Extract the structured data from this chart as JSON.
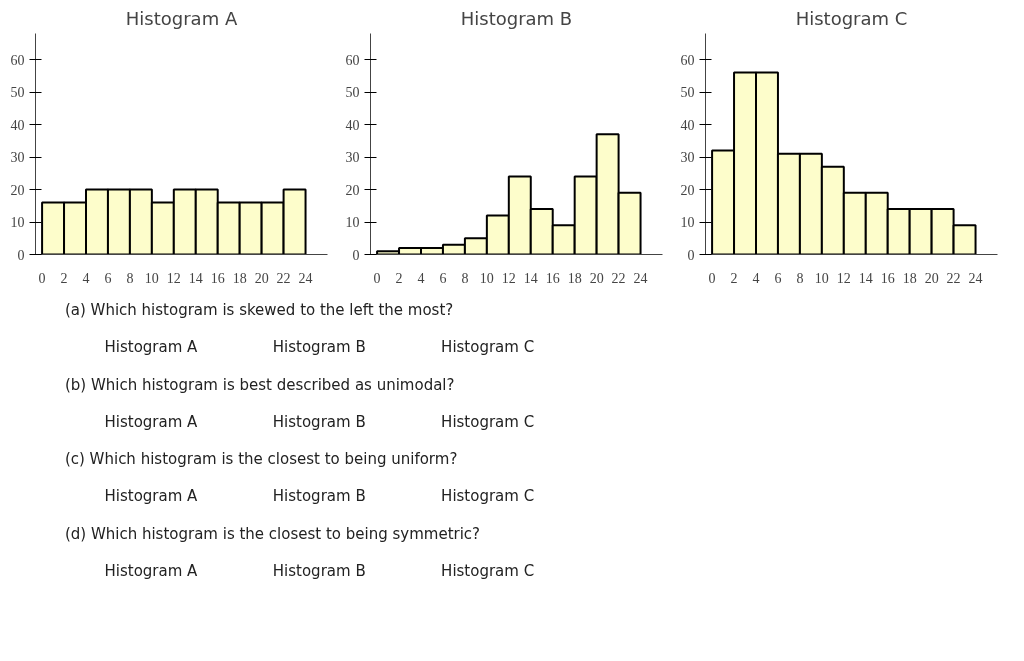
{
  "chart_data": [
    {
      "type": "histogram",
      "title": "Histogram A",
      "bins": [
        0,
        2,
        4,
        6,
        8,
        10,
        12,
        14,
        16,
        18,
        20,
        22,
        24
      ],
      "values": [
        16,
        16,
        20,
        20,
        20,
        16,
        20,
        20,
        16,
        16,
        16,
        20
      ],
      "color": "#fdfdcb",
      "xlim": [
        -0.6,
        26
      ],
      "ylim": [
        0,
        68
      ],
      "xticks": [
        0,
        2,
        4,
        6,
        8,
        10,
        12,
        14,
        16,
        18,
        20,
        22,
        24
      ],
      "yticks": [
        0,
        10,
        20,
        30,
        40,
        50,
        60
      ],
      "grid": false
    },
    {
      "type": "histogram",
      "title": "Histogram B",
      "bins": [
        0,
        2,
        4,
        6,
        8,
        10,
        12,
        14,
        16,
        18,
        20,
        22,
        24
      ],
      "values": [
        1,
        2,
        2,
        3,
        5,
        12,
        24,
        14,
        9,
        24,
        37,
        19
      ],
      "color": "#fdfdcb",
      "xlim": [
        -0.6,
        26
      ],
      "ylim": [
        0,
        68
      ],
      "xticks": [
        0,
        2,
        4,
        6,
        8,
        10,
        12,
        14,
        16,
        18,
        20,
        22,
        24
      ],
      "yticks": [
        0,
        10,
        20,
        30,
        40,
        50,
        60
      ],
      "grid": false
    },
    {
      "type": "histogram",
      "title": "Histogram C",
      "bins": [
        0,
        2,
        4,
        6,
        8,
        10,
        12,
        14,
        16,
        18,
        20,
        22,
        24
      ],
      "values": [
        32,
        56,
        56,
        31,
        31,
        27,
        19,
        19,
        14,
        14,
        14,
        9
      ],
      "color": "#fdfdcb",
      "xlim": [
        -0.6,
        26
      ],
      "ylim": [
        0,
        68
      ],
      "xticks": [
        0,
        2,
        4,
        6,
        8,
        10,
        12,
        14,
        16,
        18,
        20,
        22,
        24
      ],
      "yticks": [
        0,
        10,
        20,
        30,
        40,
        50,
        60
      ],
      "grid": false
    },
    {
      "type": "other",
      "annotations": [
        "(a) Which histogram is skewed to the left the most?",
        "Histogram A",
        "Histogram B",
        "Histogram C",
        "(b) Which histogram is best described as unimodal?",
        "Histogram A",
        "Histogram B",
        "Histogram C",
        "(c) Which histogram is the closest to being uniform?",
        "Histogram A",
        "Histogram B",
        "Histogram C",
        "(d) Which histogram is the closest to being symmetric?",
        "Histogram A",
        "Histogram B",
        "Histogram C"
      ]
    }
  ]
}
